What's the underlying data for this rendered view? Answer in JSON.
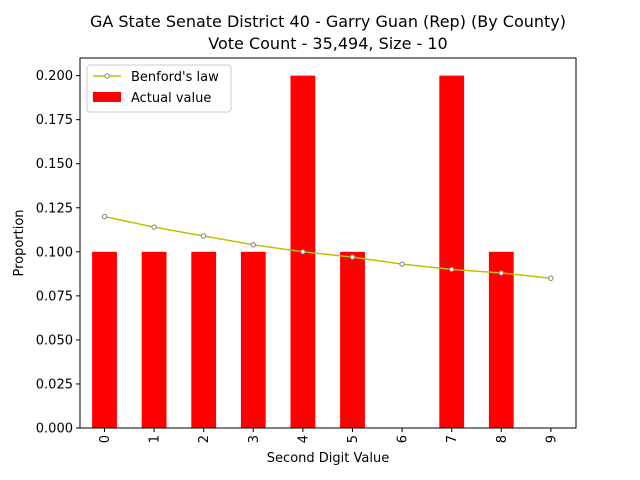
{
  "chart_data": {
    "type": "bar",
    "title_line1": "GA State Senate District 40 - Garry Guan (Rep) (By County)",
    "title_line2": "Vote Count - 35,494, Size - 10",
    "xlabel": "Second Digit Value",
    "ylabel": "Proportion",
    "categories": [
      "0",
      "1",
      "2",
      "3",
      "4",
      "5",
      "6",
      "7",
      "8",
      "9"
    ],
    "ylim": [
      0,
      0.21
    ],
    "yticks": [
      "0.000",
      "0.025",
      "0.050",
      "0.075",
      "0.100",
      "0.125",
      "0.150",
      "0.175",
      "0.200"
    ],
    "series": [
      {
        "name": "Actual value",
        "kind": "bar",
        "color": "#ff0000",
        "values": [
          0.1,
          0.1,
          0.1,
          0.1,
          0.2,
          0.1,
          0.0,
          0.2,
          0.1,
          0.0
        ]
      },
      {
        "name": "Benford's law",
        "kind": "line",
        "color": "#bfbf00",
        "marker_edge": "#808080",
        "values": [
          0.12,
          0.114,
          0.109,
          0.104,
          0.1,
          0.097,
          0.093,
          0.09,
          0.088,
          0.085
        ]
      }
    ],
    "legend": {
      "position": "top-left",
      "entries": [
        "Benford's law",
        "Actual value"
      ]
    },
    "grid": false
  }
}
